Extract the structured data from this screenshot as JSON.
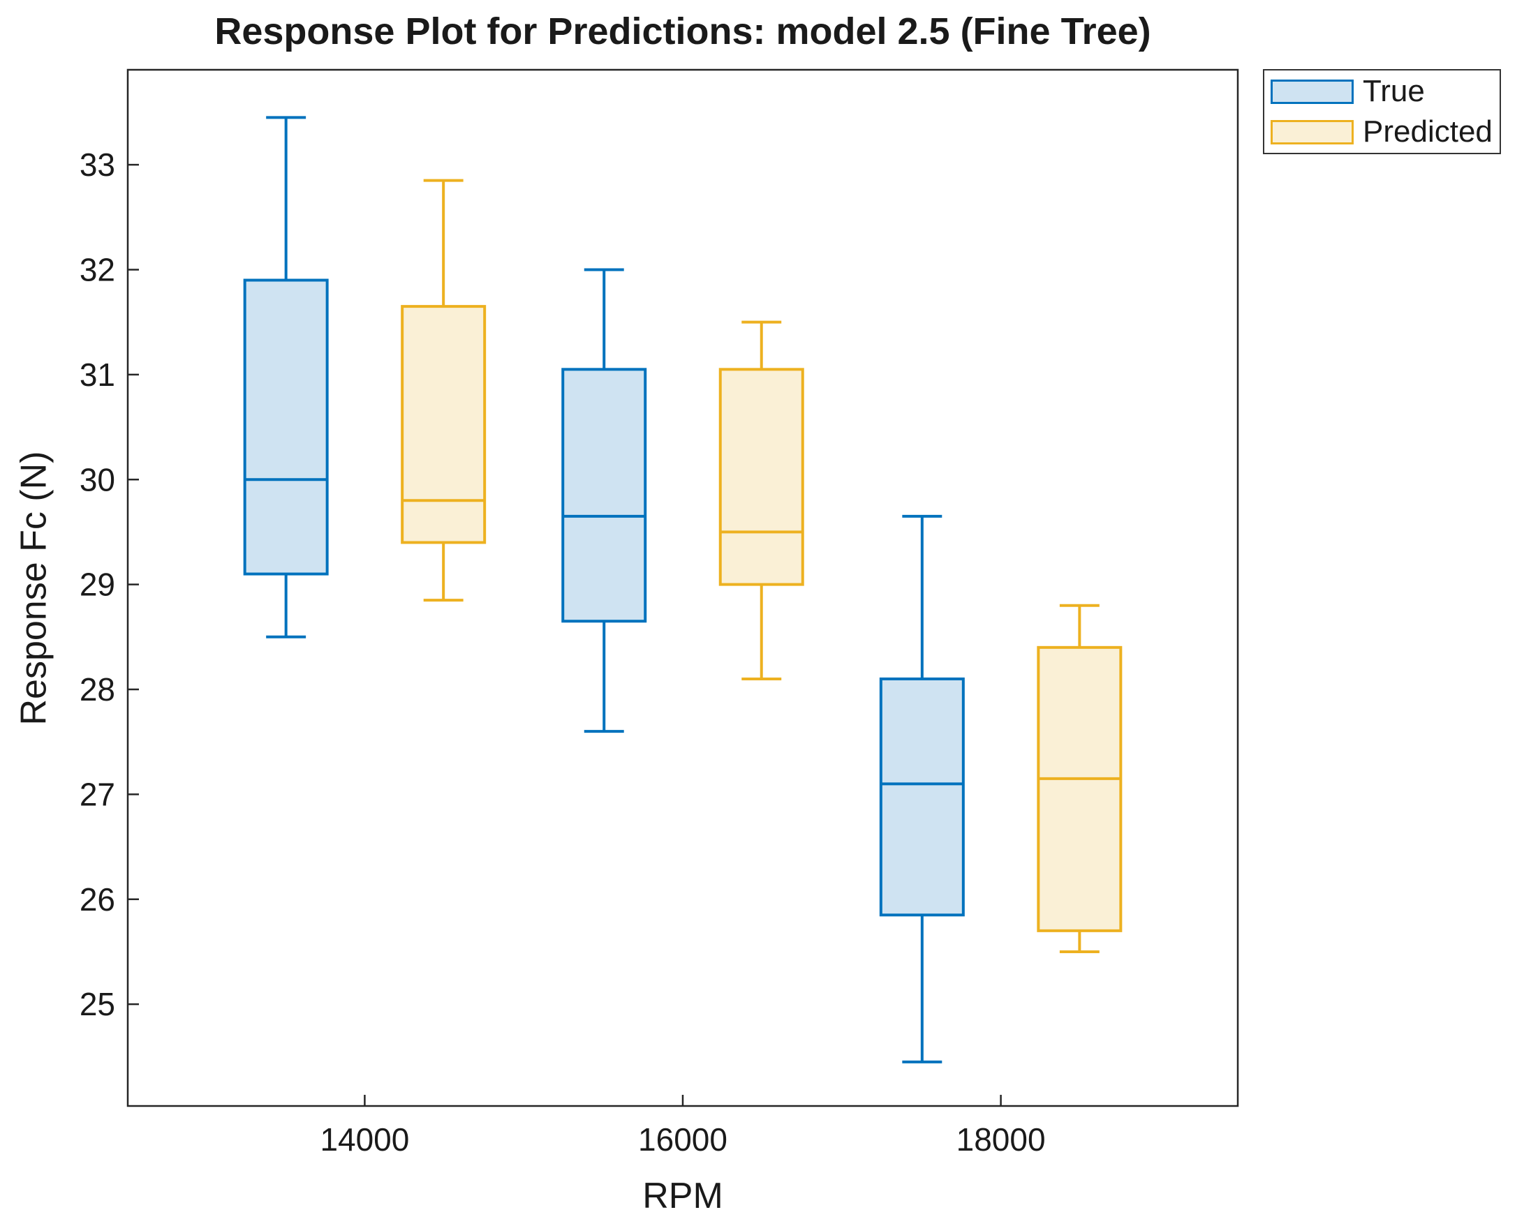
{
  "figure": {
    "title": "Response Plot for Predictions: model 2.5 (Fine Tree)"
  },
  "chart_data": {
    "type": "boxplot",
    "title": "Response Plot for Predictions: model 2.5 (Fine Tree)",
    "xlabel": "RPM",
    "ylabel": "Response Fc (N)",
    "xlim": [
      12510,
      19490
    ],
    "ylim": [
      24.03,
      33.905
    ],
    "xticks": [
      14000,
      16000,
      18000
    ],
    "yticks": [
      25,
      26,
      27,
      28,
      29,
      30,
      31,
      32,
      33
    ],
    "categories": [
      14000,
      16000,
      18000
    ],
    "grid": false,
    "box_width_rpm": 518,
    "cap_width_rpm": 250,
    "axis_color": "#262626",
    "legend": {
      "location": "northeast-outside",
      "entries": [
        "True",
        "Predicted"
      ]
    },
    "series": [
      {
        "name": "True",
        "edge_color": "#0072BD",
        "fill_color": "#CFE3F2",
        "offset": -495,
        "boxes": [
          {
            "rpm": 14000,
            "whisker_low": 28.5,
            "q1": 29.1,
            "median": 30.0,
            "q3": 31.9,
            "whisker_high": 33.45
          },
          {
            "rpm": 16000,
            "whisker_low": 27.6,
            "q1": 28.65,
            "median": 29.65,
            "q3": 31.05,
            "whisker_high": 32.0
          },
          {
            "rpm": 18000,
            "whisker_low": 24.45,
            "q1": 25.85,
            "median": 27.1,
            "q3": 28.1,
            "whisker_high": 29.65
          }
        ]
      },
      {
        "name": "Predicted",
        "edge_color": "#EDB120",
        "fill_color": "#FAF0D6",
        "offset": 495,
        "boxes": [
          {
            "rpm": 14000,
            "whisker_low": 28.85,
            "q1": 29.4,
            "median": 29.8,
            "q3": 31.65,
            "whisker_high": 32.85
          },
          {
            "rpm": 16000,
            "whisker_low": 28.1,
            "q1": 29.0,
            "median": 29.5,
            "q3": 31.05,
            "whisker_high": 31.5
          },
          {
            "rpm": 18000,
            "whisker_low": 25.5,
            "q1": 25.7,
            "median": 27.15,
            "q3": 28.4,
            "whisker_high": 28.8
          }
        ]
      }
    ]
  }
}
